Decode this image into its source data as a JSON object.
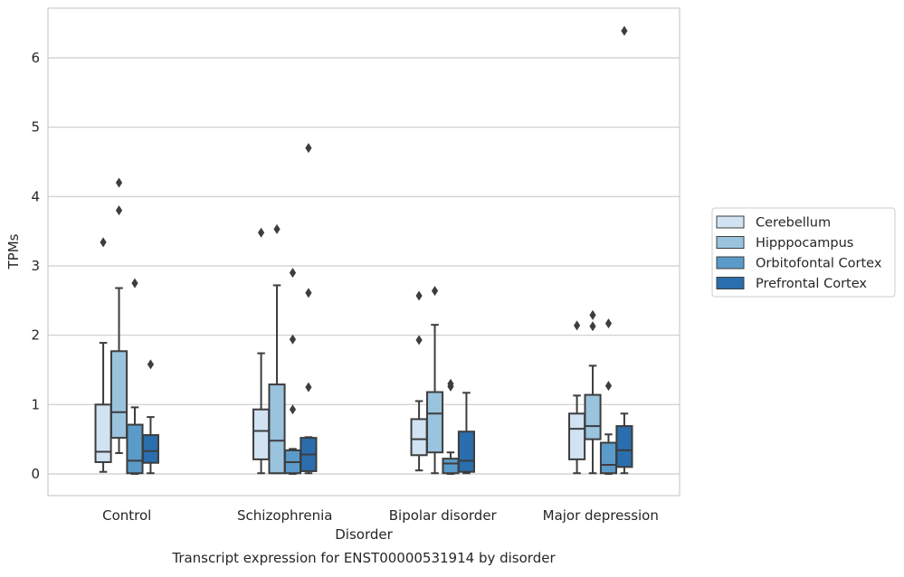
{
  "chart_data": {
    "type": "box",
    "caption": "Transcript expression for ENST00000531914 by disorder",
    "xlabel": "Disorder",
    "ylabel": "TPMs",
    "ylim": [
      -0.3,
      6.75
    ],
    "yticks": [
      0,
      1,
      2,
      3,
      4,
      5,
      6
    ],
    "grid": "horizontal",
    "legend_position": "right, outside plot",
    "categories": [
      "Control",
      "Schizophrenia",
      "Bipolar disorder",
      "Major depression"
    ],
    "series": [
      {
        "name": "Cerebellum",
        "color": "#d1e2f2",
        "boxes": [
          {
            "whislo": 0.03,
            "q1": 0.17,
            "med": 0.32,
            "q3": 1.0,
            "whishi": 1.89,
            "fliers": [
              3.34
            ]
          },
          {
            "whislo": 0.01,
            "q1": 0.21,
            "med": 0.62,
            "q3": 0.93,
            "whishi": 1.74,
            "fliers": [
              3.48
            ]
          },
          {
            "whislo": 0.05,
            "q1": 0.27,
            "med": 0.5,
            "q3": 0.79,
            "whishi": 1.05,
            "fliers": [
              1.93,
              2.57
            ]
          },
          {
            "whislo": 0.01,
            "q1": 0.21,
            "med": 0.65,
            "q3": 0.87,
            "whishi": 1.13,
            "fliers": [
              2.14
            ]
          }
        ]
      },
      {
        "name": "Hipppocampus",
        "color": "#9ac3de",
        "boxes": [
          {
            "whislo": 0.3,
            "q1": 0.52,
            "med": 0.89,
            "q3": 1.77,
            "whishi": 2.68,
            "fliers": [
              3.8,
              4.2
            ]
          },
          {
            "whislo": 0.01,
            "q1": 0.01,
            "med": 0.48,
            "q3": 1.29,
            "whishi": 2.72,
            "fliers": [
              3.53
            ]
          },
          {
            "whislo": 0.01,
            "q1": 0.31,
            "med": 0.87,
            "q3": 1.18,
            "whishi": 2.15,
            "fliers": [
              2.64
            ]
          },
          {
            "whislo": 0.01,
            "q1": 0.5,
            "med": 0.69,
            "q3": 1.14,
            "whishi": 1.56,
            "fliers": [
              2.13,
              2.29
            ]
          }
        ]
      },
      {
        "name": "Orbitofontal Cortex",
        "color": "#5a9bc9",
        "boxes": [
          {
            "whislo": 0.0,
            "q1": 0.01,
            "med": 0.19,
            "q3": 0.71,
            "whishi": 0.96,
            "fliers": [
              2.75
            ]
          },
          {
            "whislo": 0.0,
            "q1": 0.01,
            "med": 0.17,
            "q3": 0.34,
            "whishi": 0.36,
            "fliers": [
              0.93,
              1.94,
              2.9
            ]
          },
          {
            "whislo": 0.0,
            "q1": 0.01,
            "med": 0.15,
            "q3": 0.22,
            "whishi": 0.31,
            "fliers": [
              1.26,
              1.3
            ]
          },
          {
            "whislo": 0.0,
            "q1": 0.01,
            "med": 0.13,
            "q3": 0.45,
            "whishi": 0.57,
            "fliers": [
              1.27,
              2.17
            ]
          }
        ]
      },
      {
        "name": "Prefrontal Cortex",
        "color": "#2a6ead",
        "boxes": [
          {
            "whislo": 0.01,
            "q1": 0.16,
            "med": 0.33,
            "q3": 0.56,
            "whishi": 0.82,
            "fliers": [
              1.58
            ]
          },
          {
            "whislo": 0.01,
            "q1": 0.04,
            "med": 0.28,
            "q3": 0.52,
            "whishi": 0.53,
            "fliers": [
              1.25,
              2.61,
              4.7
            ]
          },
          {
            "whislo": 0.01,
            "q1": 0.03,
            "med": 0.19,
            "q3": 0.61,
            "whishi": 1.17,
            "fliers": []
          },
          {
            "whislo": 0.01,
            "q1": 0.1,
            "med": 0.34,
            "q3": 0.69,
            "whishi": 0.87,
            "fliers": [
              6.39
            ]
          }
        ]
      }
    ]
  }
}
